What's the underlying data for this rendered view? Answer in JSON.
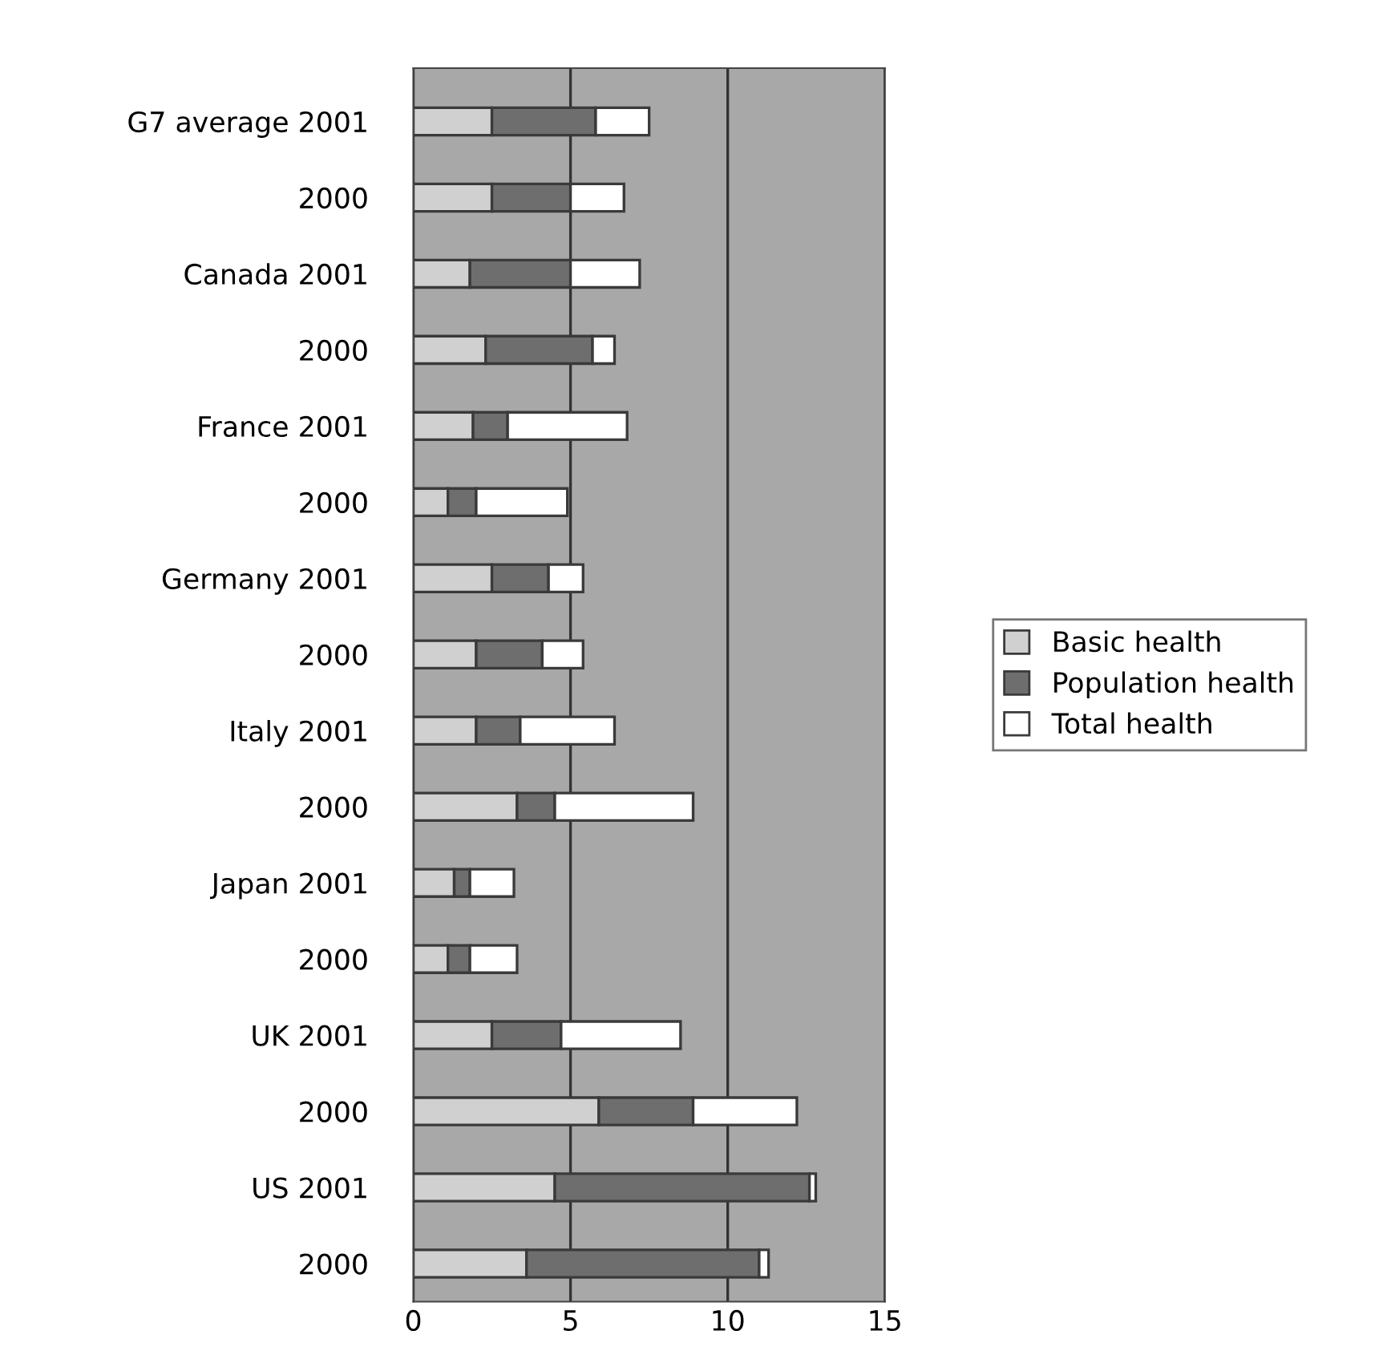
{
  "chart_data": {
    "type": "bar",
    "orientation": "horizontal",
    "stacked": true,
    "categories": [
      "G7 average 2001",
      "2000",
      "Canada 2001",
      "2000",
      "France 2001",
      "2000",
      "Germany 2001",
      "2000",
      "Italy 2001",
      "2000",
      "Japan 2001",
      "2000",
      "UK 2001",
      "2000",
      "US 2001",
      "2000"
    ],
    "series": [
      {
        "name": "Basic health",
        "color": "#d0d0d0",
        "values": [
          2.5,
          2.5,
          1.8,
          2.3,
          1.9,
          1.1,
          2.5,
          2.0,
          2.0,
          3.3,
          1.3,
          1.1,
          2.5,
          5.9,
          4.5,
          3.6
        ]
      },
      {
        "name": "Population health",
        "color": "#6e6e6e",
        "values": [
          3.3,
          2.5,
          3.2,
          3.4,
          1.1,
          0.9,
          1.8,
          2.1,
          1.4,
          1.2,
          0.5,
          0.7,
          2.2,
          3.0,
          8.1,
          7.4
        ]
      },
      {
        "name": "Total health",
        "color": "#ffffff",
        "values": [
          1.7,
          1.7,
          2.2,
          0.7,
          3.8,
          2.9,
          1.1,
          1.3,
          3.0,
          4.4,
          1.4,
          1.5,
          3.8,
          3.3,
          0.2,
          0.3
        ]
      }
    ],
    "xlim": [
      0,
      15
    ],
    "xticks": [
      0,
      5,
      10,
      15
    ],
    "grid": "x",
    "legend": "right"
  }
}
